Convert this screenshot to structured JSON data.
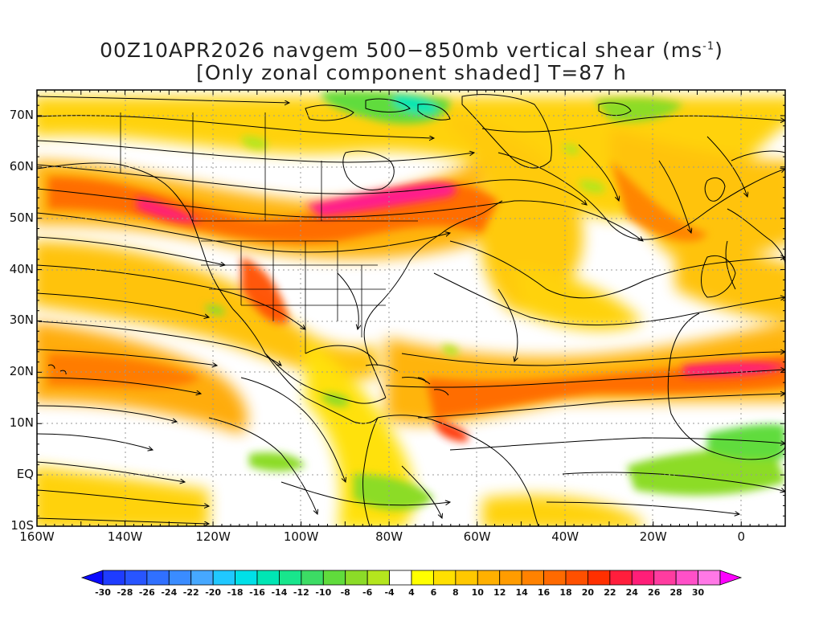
{
  "title": {
    "line1_prefix": "00Z10APR2026 navgem 500−850mb vertical shear (ms",
    "line1_sup": "-1",
    "line1_suffix": ")",
    "line2": "[Only zonal component shaded] T=87 h"
  },
  "map": {
    "lon_range": [
      -160,
      10
    ],
    "lat_range": [
      -10,
      75
    ],
    "lat_labels": [
      "70N",
      "60N",
      "50N",
      "40N",
      "30N",
      "20N",
      "10N",
      "EQ",
      "10S"
    ],
    "lat_values": [
      70,
      60,
      50,
      40,
      30,
      20,
      10,
      0,
      -10
    ],
    "lon_labels": [
      "160W",
      "140W",
      "120W",
      "100W",
      "80W",
      "60W",
      "40W",
      "20W",
      "0"
    ],
    "lon_values": [
      -160,
      -140,
      -120,
      -100,
      -80,
      -60,
      -40,
      -20,
      0
    ]
  },
  "colorbar": {
    "labels": [
      "-30",
      "-28",
      "-26",
      "-24",
      "-22",
      "-20",
      "-18",
      "-16",
      "-14",
      "-12",
      "-10",
      "-8",
      "-6",
      "-4",
      "4",
      "6",
      "8",
      "10",
      "12",
      "14",
      "16",
      "18",
      "20",
      "22",
      "24",
      "26",
      "28",
      "30"
    ],
    "colors": [
      "#1e3cff",
      "#2855ff",
      "#3070ff",
      "#3a8cff",
      "#46a8ff",
      "#20c8ff",
      "#00e0e8",
      "#00e6b4",
      "#18e68c",
      "#3cdc64",
      "#60dc3c",
      "#8cdc28",
      "#b4e61e",
      "#ffffff",
      "#ffff00",
      "#ffe000",
      "#ffc800",
      "#ffb000",
      "#ff9c00",
      "#ff8200",
      "#ff6a00",
      "#ff5000",
      "#ff3000",
      "#ff1e3c",
      "#ff1e78",
      "#ff3ca0",
      "#ff50c8",
      "#ff78e6"
    ],
    "under_color": "#0a0aff",
    "over_color": "#ff00ff"
  },
  "colors": {
    "land_outline": "#000000",
    "streamline": "#000000",
    "grid": "#999999"
  }
}
